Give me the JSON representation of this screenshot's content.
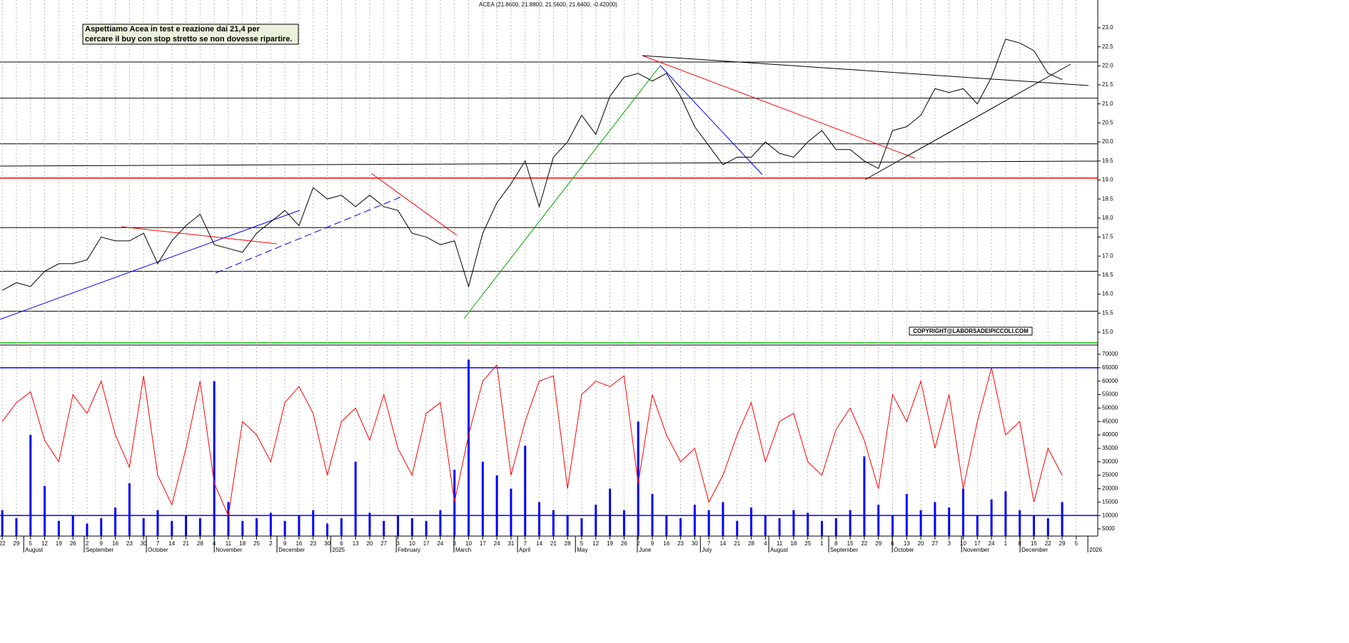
{
  "chart_data": [
    {
      "type": "line",
      "title": "ACEA (21.8600, 21.8800, 21.5600, 21.6400, -0.42000)",
      "annotation": [
        "Aspettiamo Acea in test e reazione dai 21,4 per",
        "cercare il buy con stop stretto se non dovesse ripartire."
      ],
      "copyright": "COPYRIGHT@LABORSADEIPICCOLI.COM",
      "xlim": [
        -0.8,
        387.6
      ],
      "ylim": [
        14.7,
        23.73
      ],
      "yticks": [
        {
          "value": 15,
          "label": "15.0"
        },
        {
          "value": 15.5,
          "label": "15.5"
        },
        {
          "value": 16,
          "label": "16.0"
        },
        {
          "value": 16.5,
          "label": "16.5"
        },
        {
          "value": 17,
          "label": "17.0"
        },
        {
          "value": 17.5,
          "label": "17.5"
        },
        {
          "value": 18,
          "label": "18.0"
        },
        {
          "value": 18.5,
          "label": "18.5"
        },
        {
          "value": 19,
          "label": "19.0"
        },
        {
          "value": 19.5,
          "label": "19.5"
        },
        {
          "value": 20,
          "label": "20.0"
        },
        {
          "value": 20.5,
          "label": "20.5"
        },
        {
          "value": 21,
          "label": "21.0"
        },
        {
          "value": 21.5,
          "label": "21.5"
        },
        {
          "value": 22,
          "label": "22.0"
        },
        {
          "value": 22.5,
          "label": "22.5"
        },
        {
          "value": 23,
          "label": "23.0"
        }
      ],
      "levels": [
        {
          "value": 22.1,
          "color": "#000000"
        },
        {
          "value": 21.15,
          "color": "#000000"
        },
        {
          "value": 19.95,
          "color": "#000000"
        },
        {
          "value": 19.05,
          "color": "#ff0000"
        },
        {
          "value": 17.75,
          "color": "#000000"
        },
        {
          "value": 16.6,
          "color": "#000000"
        },
        {
          "value": 15.55,
          "color": "#000000"
        },
        {
          "value": 14.72,
          "color": "#00cc00"
        }
      ],
      "x": [
        0,
        5,
        10,
        15,
        20,
        25,
        30,
        35,
        40,
        45,
        50,
        55,
        60,
        65,
        70,
        75,
        80,
        85,
        90,
        95,
        100,
        105,
        110,
        115,
        120,
        125,
        130,
        135,
        140,
        145,
        150,
        155,
        160,
        165,
        170,
        175,
        180,
        185,
        190,
        195,
        200,
        205,
        210,
        215,
        220,
        225,
        230,
        235,
        240,
        245,
        250,
        255,
        260,
        265,
        270,
        275,
        280,
        285,
        290,
        295,
        300,
        305,
        310,
        315,
        320,
        325,
        330,
        335,
        340,
        345,
        350,
        355,
        360,
        365,
        370,
        375
      ],
      "series": [
        {
          "color": "#000000",
          "values": [
            16.1,
            16.3,
            16.2,
            16.6,
            16.8,
            16.8,
            16.9,
            17.5,
            17.4,
            17.4,
            17.6,
            16.8,
            17.4,
            17.8,
            18.1,
            17.3,
            17.2,
            17.1,
            17.6,
            17.9,
            18.2,
            17.8,
            18.8,
            18.5,
            18.6,
            18.3,
            18.6,
            18.3,
            18.2,
            17.6,
            17.5,
            17.3,
            17.4,
            16.2,
            17.6,
            18.4,
            18.9,
            19.5,
            18.3,
            19.6,
            20.0,
            20.7,
            20.2,
            21.2,
            21.7,
            21.8,
            21.6,
            21.8,
            21.2,
            20.4,
            19.9,
            19.4,
            19.6,
            19.6,
            20.0,
            19.7,
            19.6,
            20.0,
            20.3,
            19.8,
            19.8,
            19.5,
            19.3,
            20.3,
            20.4,
            20.7,
            21.4,
            21.3,
            21.4,
            21.0,
            21.7,
            22.7,
            22.6,
            22.4,
            21.8,
            21.64
          ]
        }
      ]
    },
    {
      "type": "bar",
      "xlim": [
        -0.8,
        387.6
      ],
      "ylim": [
        2350,
        72650
      ],
      "yticks": [
        5000,
        10000,
        15000,
        20000,
        25000,
        30000,
        35000,
        40000,
        45000,
        50000,
        55000,
        60000,
        65000,
        70000
      ],
      "levels": [
        {
          "value": 65000,
          "color": "#0000ff"
        },
        {
          "value": 10000,
          "color": "#0000ff"
        }
      ],
      "xticks": [
        {
          "value": 0,
          "label": "22"
        },
        {
          "value": 5,
          "label": "29"
        },
        {
          "value": 10,
          "label": "5"
        },
        {
          "value": 15,
          "label": "12"
        },
        {
          "value": 20,
          "label": "19"
        },
        {
          "value": 25,
          "label": "26"
        },
        {
          "value": 30,
          "label": "2"
        },
        {
          "value": 35,
          "label": "9"
        },
        {
          "value": 40,
          "label": "16"
        },
        {
          "value": 45,
          "label": "23"
        },
        {
          "value": 50,
          "label": "30"
        },
        {
          "value": 55,
          "label": "7"
        },
        {
          "value": 60,
          "label": "14"
        },
        {
          "value": 65,
          "label": "21"
        },
        {
          "value": 70,
          "label": "28"
        },
        {
          "value": 75,
          "label": "4"
        },
        {
          "value": 80,
          "label": "11"
        },
        {
          "value": 85,
          "label": "18"
        },
        {
          "value": 90,
          "label": "25"
        },
        {
          "value": 95,
          "label": "2"
        },
        {
          "value": 100,
          "label": "9"
        },
        {
          "value": 105,
          "label": "16"
        },
        {
          "value": 110,
          "label": "23"
        },
        {
          "value": 115,
          "label": "30"
        },
        {
          "value": 120,
          "label": "6"
        },
        {
          "value": 125,
          "label": "13"
        },
        {
          "value": 130,
          "label": "20"
        },
        {
          "value": 135,
          "label": "27"
        },
        {
          "value": 140,
          "label": "3"
        },
        {
          "value": 145,
          "label": "10"
        },
        {
          "value": 150,
          "label": "17"
        },
        {
          "value": 155,
          "label": "24"
        },
        {
          "value": 160,
          "label": "3"
        },
        {
          "value": 165,
          "label": "10"
        },
        {
          "value": 170,
          "label": "17"
        },
        {
          "value": 175,
          "label": "24"
        },
        {
          "value": 180,
          "label": "31"
        },
        {
          "value": 185,
          "label": "7"
        },
        {
          "value": 190,
          "label": "14"
        },
        {
          "value": 195,
          "label": "21"
        },
        {
          "value": 200,
          "label": "28"
        },
        {
          "value": 205,
          "label": "5"
        },
        {
          "value": 210,
          "label": "12"
        },
        {
          "value": 215,
          "label": "19"
        },
        {
          "value": 220,
          "label": "26"
        },
        {
          "value": 225,
          "label": "2"
        },
        {
          "value": 230,
          "label": "9"
        },
        {
          "value": 235,
          "label": "16"
        },
        {
          "value": 240,
          "label": "23"
        },
        {
          "value": 245,
          "label": "30"
        },
        {
          "value": 250,
          "label": "7"
        },
        {
          "value": 255,
          "label": "14"
        },
        {
          "value": 260,
          "label": "21"
        },
        {
          "value": 265,
          "label": "28"
        },
        {
          "value": 270,
          "label": "4"
        },
        {
          "value": 275,
          "label": "11"
        },
        {
          "value": 280,
          "label": "18"
        },
        {
          "value": 285,
          "label": "25"
        },
        {
          "value": 290,
          "label": "1"
        },
        {
          "value": 295,
          "label": "8"
        },
        {
          "value": 300,
          "label": "15"
        },
        {
          "value": 305,
          "label": "22"
        },
        {
          "value": 310,
          "label": "29"
        },
        {
          "value": 315,
          "label": "6"
        },
        {
          "value": 320,
          "label": "13"
        },
        {
          "value": 325,
          "label": "20"
        },
        {
          "value": 330,
          "label": "27"
        },
        {
          "value": 335,
          "label": "3"
        },
        {
          "value": 340,
          "label": "10"
        },
        {
          "value": 345,
          "label": "17"
        },
        {
          "value": 350,
          "label": "24"
        },
        {
          "value": 355,
          "label": "1"
        },
        {
          "value": 360,
          "label": "8"
        },
        {
          "value": 365,
          "label": "15"
        },
        {
          "value": 370,
          "label": "22"
        },
        {
          "value": 375,
          "label": "29"
        },
        {
          "value": 380,
          "label": "5"
        }
      ],
      "month_ticks": [
        {
          "value": 7.6,
          "label": "August"
        },
        {
          "value": 29,
          "label": "September"
        },
        {
          "value": 51,
          "label": "October"
        },
        {
          "value": 75,
          "label": "November"
        },
        {
          "value": 97.2,
          "label": "December"
        },
        {
          "value": 116.2,
          "label": "2025"
        },
        {
          "value": 139.4,
          "label": "February"
        },
        {
          "value": 159.8,
          "label": "March"
        },
        {
          "value": 182.3,
          "label": "April"
        },
        {
          "value": 202.8,
          "label": "May"
        },
        {
          "value": 224.7,
          "label": "June"
        },
        {
          "value": 247,
          "label": "July"
        },
        {
          "value": 271.2,
          "label": "August"
        },
        {
          "value": 292.4,
          "label": "September"
        },
        {
          "value": 314.9,
          "label": "October"
        },
        {
          "value": 339.4,
          "label": "November"
        },
        {
          "value": 360.1,
          "label": "December"
        },
        {
          "value": 384.1,
          "label": "2026"
        }
      ],
      "x": [
        0,
        5,
        10,
        15,
        20,
        25,
        30,
        35,
        40,
        45,
        50,
        55,
        60,
        65,
        70,
        75,
        80,
        85,
        90,
        95,
        100,
        105,
        110,
        115,
        120,
        125,
        130,
        135,
        140,
        145,
        150,
        155,
        160,
        165,
        170,
        175,
        180,
        185,
        190,
        195,
        200,
        205,
        210,
        215,
        220,
        225,
        230,
        235,
        240,
        245,
        250,
        255,
        260,
        265,
        270,
        275,
        280,
        285,
        290,
        295,
        300,
        305,
        310,
        315,
        320,
        325,
        330,
        335,
        340,
        345,
        350,
        355,
        360,
        365,
        370,
        375
      ],
      "series": [
        {
          "type": "bar",
          "color": "#0000ff",
          "values": [
            12000,
            9000,
            40000,
            21000,
            8000,
            10000,
            7000,
            9000,
            13000,
            22000,
            9000,
            12000,
            8000,
            10000,
            9000,
            60000,
            15000,
            8000,
            9000,
            11000,
            8000,
            10000,
            12000,
            7000,
            9000,
            30000,
            11000,
            8000,
            10000,
            9000,
            8000,
            12000,
            27000,
            68000,
            30000,
            25000,
            20000,
            36000,
            15000,
            12000,
            10000,
            9000,
            14000,
            20000,
            12000,
            45000,
            18000,
            10000,
            9000,
            14000,
            12000,
            15000,
            8000,
            13000,
            10000,
            9000,
            12000,
            11000,
            8000,
            9000,
            12000,
            32000,
            14000,
            10000,
            18000,
            12000,
            15000,
            13000,
            20000,
            10000,
            16000,
            19000,
            12000,
            10000,
            9000,
            15000
          ]
        },
        {
          "type": "line",
          "color": "#ff0000",
          "values": [
            45000,
            52000,
            56000,
            38000,
            30000,
            55000,
            48000,
            60000,
            40000,
            28000,
            62000,
            25000,
            14000,
            35000,
            60000,
            22000,
            10000,
            45000,
            40000,
            30000,
            52000,
            58000,
            48000,
            25000,
            45000,
            50000,
            38000,
            55000,
            35000,
            25000,
            48000,
            52000,
            15000,
            40000,
            60000,
            66000,
            25000,
            45000,
            60000,
            62000,
            20000,
            55000,
            60000,
            58000,
            62000,
            22000,
            55000,
            40000,
            30000,
            35000,
            15000,
            25000,
            40000,
            52000,
            30000,
            45000,
            48000,
            30000,
            25000,
            42000,
            50000,
            38000,
            20000,
            55000,
            45000,
            60000,
            35000,
            55000,
            20000,
            45000,
            65000,
            40000,
            45000,
            15000,
            35000,
            25000
          ]
        }
      ]
    }
  ]
}
